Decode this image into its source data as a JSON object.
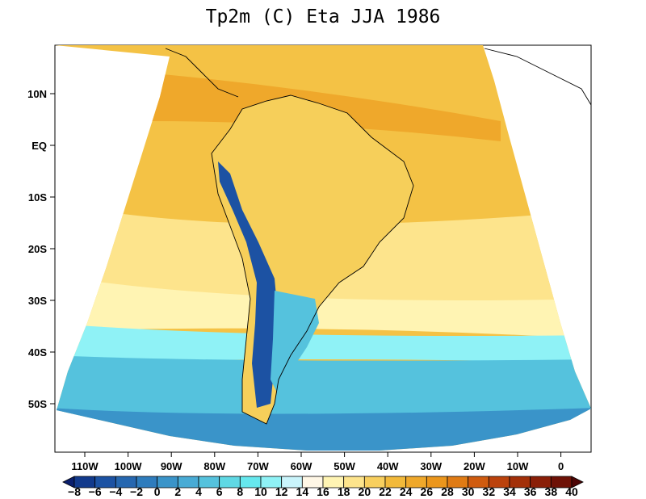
{
  "title": "Tp2m (C) Eta JJA 1986",
  "map": {
    "variable": "Tp2m (C)",
    "model": "Eta",
    "season": "JJA",
    "year": "1986",
    "region": "South America",
    "lat_ticks": [
      "10N",
      "EQ",
      "10S",
      "20S",
      "30S",
      "40S",
      "50S"
    ],
    "lon_ticks": [
      "110W",
      "100W",
      "90W",
      "80W",
      "70W",
      "60W",
      "50W",
      "40W",
      "30W",
      "20W",
      "10W",
      "0"
    ]
  },
  "colorbar": {
    "labels": [
      "−8",
      "−6",
      "−4",
      "−2",
      "0",
      "2",
      "4",
      "6",
      "8",
      "10",
      "12",
      "14",
      "16",
      "18",
      "20",
      "22",
      "24",
      "26",
      "28",
      "30",
      "32",
      "34",
      "36",
      "38",
      "40"
    ],
    "colors": [
      "#0a1f6e",
      "#123a8c",
      "#1c52a3",
      "#2667b0",
      "#2e7cbd",
      "#3a94c9",
      "#48abd5",
      "#55c2dd",
      "#5fd8e4",
      "#66e8ee",
      "#8ff2f6",
      "#c9f4fb",
      "#fff7e6",
      "#fff4b3",
      "#fde48c",
      "#f8cf5e",
      "#f2b93a",
      "#efa82b",
      "#eb961c",
      "#e07b14",
      "#cf5b0f",
      "#bb420c",
      "#a33009",
      "#8a1f07",
      "#6e1106",
      "#4d0505"
    ]
  },
  "colors": {
    "ocean_warm": "#f4c245",
    "ocean_hot": "#efa82b",
    "ocean_mild": "#fde48c",
    "ocean_cool": "#fff4b3",
    "ocean_cold": "#8ff2f6",
    "ocean_colder": "#55c2dd",
    "ocean_coldest": "#3a94c9",
    "andes": "#1c52a3",
    "coast": "#000000"
  }
}
